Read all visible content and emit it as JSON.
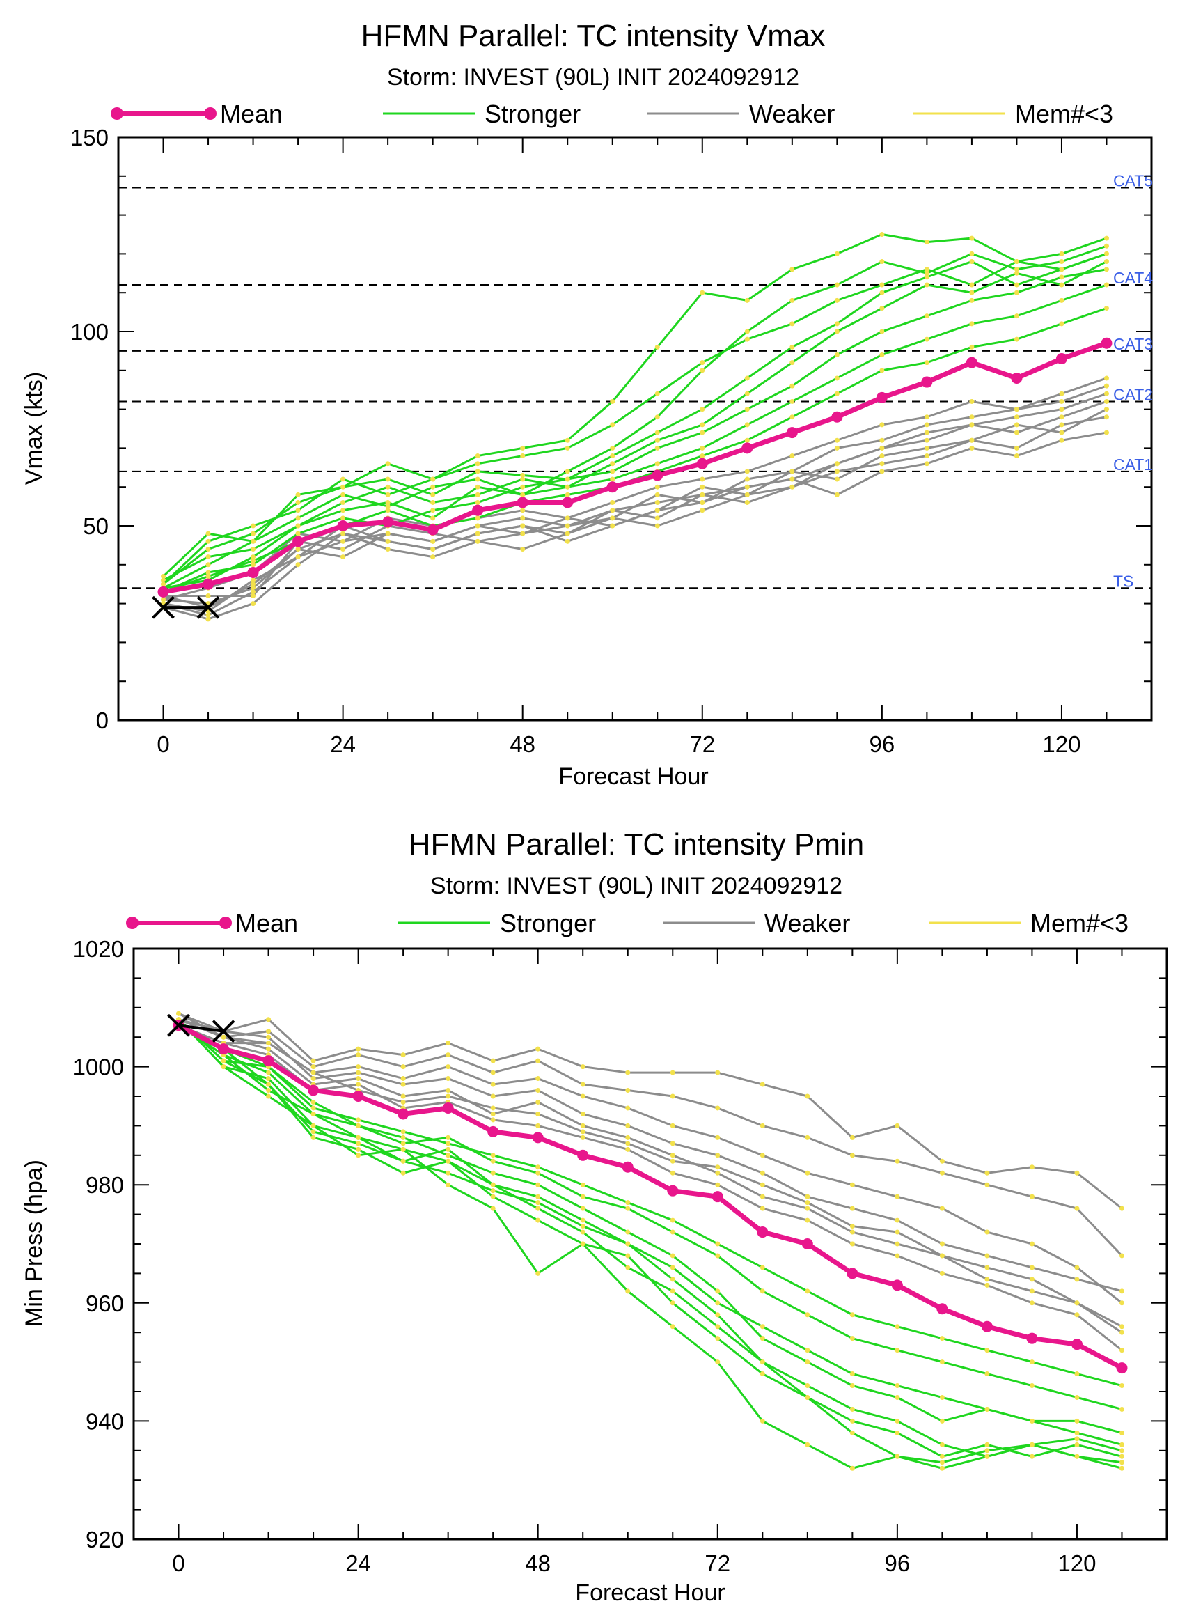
{
  "legend": {
    "mean": "Mean",
    "stronger": "Stronger",
    "weaker": "Weaker",
    "few_members": "Mem#<3"
  },
  "colors": {
    "mean": "#e8168c",
    "stronger": "#1fd61f",
    "weaker": "#8c8c8c",
    "member_points": "#f2e14c",
    "best_track": "#000000",
    "category_labels": "#3a5ee6"
  },
  "chart_data": [
    {
      "type": "line",
      "title": "HFMN Parallel: TC intensity Vmax",
      "subtitle": "Storm: INVEST (90L) INIT 2024092912",
      "xlabel": "Forecast Hour",
      "ylabel": "Vmax (kts)",
      "xlim": [
        -6,
        132
      ],
      "ylim": [
        0,
        150
      ],
      "xticks": [
        0,
        24,
        48,
        72,
        96,
        120
      ],
      "yticks": [
        0,
        50,
        100,
        150
      ],
      "reference_lines": [
        {
          "label": "TS",
          "value": 34
        },
        {
          "label": "CAT1",
          "value": 64
        },
        {
          "label": "CAT2",
          "value": 82
        },
        {
          "label": "CAT3",
          "value": 95
        },
        {
          "label": "CAT4",
          "value": 112
        },
        {
          "label": "CAT5",
          "value": 137
        }
      ],
      "x": [
        0,
        6,
        12,
        18,
        24,
        30,
        36,
        42,
        48,
        54,
        60,
        66,
        72,
        78,
        84,
        90,
        96,
        102,
        108,
        114,
        120,
        126
      ],
      "mean": [
        33,
        35,
        38,
        46,
        50,
        51,
        49,
        54,
        56,
        56,
        60,
        63,
        66,
        70,
        74,
        78,
        83,
        87,
        92,
        88,
        93,
        97
      ],
      "best_track": {
        "x": [
          0,
          6
        ],
        "values": [
          29,
          29
        ]
      },
      "stronger_members": [
        [
          35,
          44,
          48,
          56,
          60,
          62,
          58,
          64,
          63,
          62,
          68,
          74,
          80,
          88,
          96,
          102,
          110,
          114,
          118,
          112,
          116,
          120
        ],
        [
          34,
          40,
          46,
          52,
          58,
          55,
          60,
          62,
          58,
          64,
          70,
          78,
          90,
          100,
          108,
          112,
          118,
          115,
          120,
          116,
          118,
          122
        ],
        [
          36,
          42,
          44,
          50,
          56,
          60,
          56,
          58,
          62,
          60,
          66,
          72,
          76,
          84,
          92,
          100,
          106,
          112,
          110,
          115,
          112,
          118
        ],
        [
          33,
          38,
          40,
          48,
          52,
          50,
          54,
          56,
          60,
          62,
          64,
          70,
          74,
          80,
          86,
          94,
          100,
          104,
          108,
          110,
          114,
          116
        ],
        [
          35,
          46,
          50,
          54,
          62,
          58,
          62,
          66,
          68,
          70,
          76,
          84,
          92,
          98,
          102,
          108,
          112,
          116,
          112,
          118,
          116,
          120
        ],
        [
          34,
          36,
          42,
          50,
          54,
          56,
          52,
          60,
          58,
          60,
          62,
          66,
          70,
          76,
          82,
          88,
          94,
          98,
          102,
          104,
          108,
          112
        ],
        [
          37,
          48,
          46,
          58,
          60,
          66,
          62,
          68,
          70,
          72,
          82,
          96,
          110,
          108,
          116,
          120,
          125,
          123,
          124,
          118,
          120,
          124
        ],
        [
          33,
          37,
          41,
          46,
          50,
          54,
          50,
          52,
          56,
          58,
          60,
          64,
          68,
          72,
          78,
          84,
          90,
          92,
          96,
          98,
          102,
          106
        ]
      ],
      "weaker_members": [
        [
          31,
          30,
          34,
          44,
          48,
          46,
          44,
          48,
          50,
          48,
          54,
          56,
          58,
          60,
          62,
          66,
          70,
          72,
          76,
          74,
          78,
          82
        ],
        [
          30,
          28,
          36,
          42,
          46,
          48,
          46,
          50,
          52,
          50,
          52,
          58,
          56,
          62,
          64,
          70,
          72,
          76,
          78,
          80,
          82,
          86
        ],
        [
          32,
          32,
          32,
          46,
          44,
          50,
          48,
          46,
          48,
          52,
          50,
          54,
          60,
          58,
          64,
          62,
          68,
          70,
          72,
          76,
          74,
          80
        ],
        [
          29,
          26,
          30,
          40,
          48,
          44,
          42,
          46,
          44,
          48,
          52,
          50,
          54,
          58,
          60,
          64,
          66,
          68,
          72,
          70,
          76,
          78
        ],
        [
          31,
          34,
          38,
          48,
          46,
          52,
          50,
          52,
          54,
          52,
          56,
          60,
          62,
          64,
          68,
          72,
          76,
          78,
          82,
          80,
          84,
          88
        ],
        [
          30,
          27,
          33,
          42,
          50,
          46,
          44,
          48,
          50,
          46,
          50,
          54,
          56,
          60,
          62,
          58,
          64,
          66,
          70,
          68,
          72,
          74
        ],
        [
          32,
          29,
          35,
          44,
          42,
          48,
          46,
          50,
          48,
          50,
          54,
          52,
          58,
          56,
          60,
          66,
          70,
          74,
          76,
          78,
          80,
          84
        ]
      ]
    },
    {
      "type": "line",
      "title": "HFMN Parallel: TC intensity Pmin",
      "subtitle": "Storm: INVEST (90L) INIT 2024092912",
      "xlabel": "Forecast Hour",
      "ylabel": "Min Press (hpa)",
      "xlim": [
        -6,
        132
      ],
      "ylim": [
        920,
        1020
      ],
      "xticks": [
        0,
        24,
        48,
        72,
        96,
        120
      ],
      "yticks": [
        920,
        940,
        960,
        980,
        1000,
        1020
      ],
      "x": [
        0,
        6,
        12,
        18,
        24,
        30,
        36,
        42,
        48,
        54,
        60,
        66,
        72,
        78,
        84,
        90,
        96,
        102,
        108,
        114,
        120,
        126
      ],
      "mean": [
        1007,
        1003,
        1001,
        996,
        995,
        992,
        993,
        989,
        988,
        985,
        983,
        979,
        978,
        972,
        970,
        965,
        963,
        959,
        956,
        954,
        953,
        949
      ],
      "best_track": {
        "x": [
          0,
          6
        ],
        "values": [
          1007,
          1006
        ]
      },
      "stronger_members": [
        [
          1008,
          1000,
          998,
          990,
          988,
          986,
          984,
          980,
          978,
          974,
          970,
          964,
          958,
          950,
          946,
          942,
          940,
          936,
          934,
          936,
          934,
          932
        ],
        [
          1007,
          1002,
          996,
          992,
          988,
          984,
          986,
          980,
          976,
          972,
          966,
          962,
          956,
          950,
          944,
          940,
          938,
          934,
          936,
          934,
          936,
          934
        ],
        [
          1008,
          1001,
          1000,
          994,
          990,
          988,
          985,
          982,
          980,
          976,
          972,
          968,
          962,
          954,
          950,
          946,
          944,
          940,
          942,
          940,
          938,
          936
        ],
        [
          1007,
          1003,
          997,
          988,
          986,
          982,
          984,
          978,
          974,
          970,
          968,
          960,
          954,
          948,
          944,
          938,
          934,
          932,
          934,
          936,
          934,
          933
        ],
        [
          1008,
          1000,
          995,
          990,
          985,
          986,
          980,
          976,
          965,
          970,
          962,
          956,
          950,
          940,
          936,
          932,
          934,
          933,
          935,
          936,
          937,
          935
        ],
        [
          1007,
          1002,
          999,
          992,
          990,
          987,
          988,
          984,
          982,
          978,
          976,
          972,
          968,
          962,
          958,
          954,
          952,
          950,
          948,
          946,
          944,
          942
        ],
        [
          1008,
          1001,
          997,
          989,
          987,
          984,
          982,
          979,
          977,
          973,
          970,
          966,
          960,
          956,
          952,
          948,
          946,
          944,
          942,
          940,
          940,
          938
        ],
        [
          1007,
          1003,
          1000,
          993,
          991,
          989,
          987,
          985,
          983,
          980,
          977,
          974,
          970,
          966,
          962,
          958,
          956,
          954,
          952,
          950,
          948,
          946
        ]
      ],
      "weaker_members": [
        [
          1009,
          1006,
          1008,
          1001,
          1003,
          1002,
          1004,
          1001,
          1003,
          1000,
          999,
          999,
          999,
          997,
          995,
          988,
          990,
          984,
          982,
          983,
          982,
          976
        ],
        [
          1008,
          1005,
          1006,
          1000,
          1002,
          1000,
          1002,
          999,
          1001,
          997,
          996,
          995,
          993,
          990,
          988,
          985,
          984,
          982,
          980,
          978,
          976,
          968
        ],
        [
          1007,
          1004,
          1004,
          999,
          1000,
          998,
          1000,
          997,
          998,
          995,
          993,
          990,
          988,
          985,
          982,
          980,
          978,
          976,
          972,
          970,
          966,
          960
        ],
        [
          1008,
          1006,
          1005,
          998,
          999,
          997,
          998,
          995,
          996,
          992,
          990,
          987,
          985,
          982,
          978,
          976,
          974,
          970,
          968,
          966,
          964,
          962
        ],
        [
          1009,
          1005,
          1003,
          997,
          998,
          995,
          996,
          992,
          994,
          990,
          988,
          985,
          982,
          978,
          976,
          972,
          970,
          968,
          966,
          964,
          960,
          956
        ],
        [
          1007,
          1004,
          1002,
          996,
          997,
          993,
          994,
          991,
          990,
          988,
          986,
          982,
          980,
          976,
          974,
          970,
          968,
          965,
          963,
          960,
          958,
          952
        ],
        [
          1008,
          1005,
          1004,
          999,
          996,
          994,
          995,
          993,
          992,
          989,
          987,
          984,
          983,
          980,
          977,
          973,
          972,
          968,
          964,
          962,
          960,
          955
        ]
      ]
    }
  ]
}
